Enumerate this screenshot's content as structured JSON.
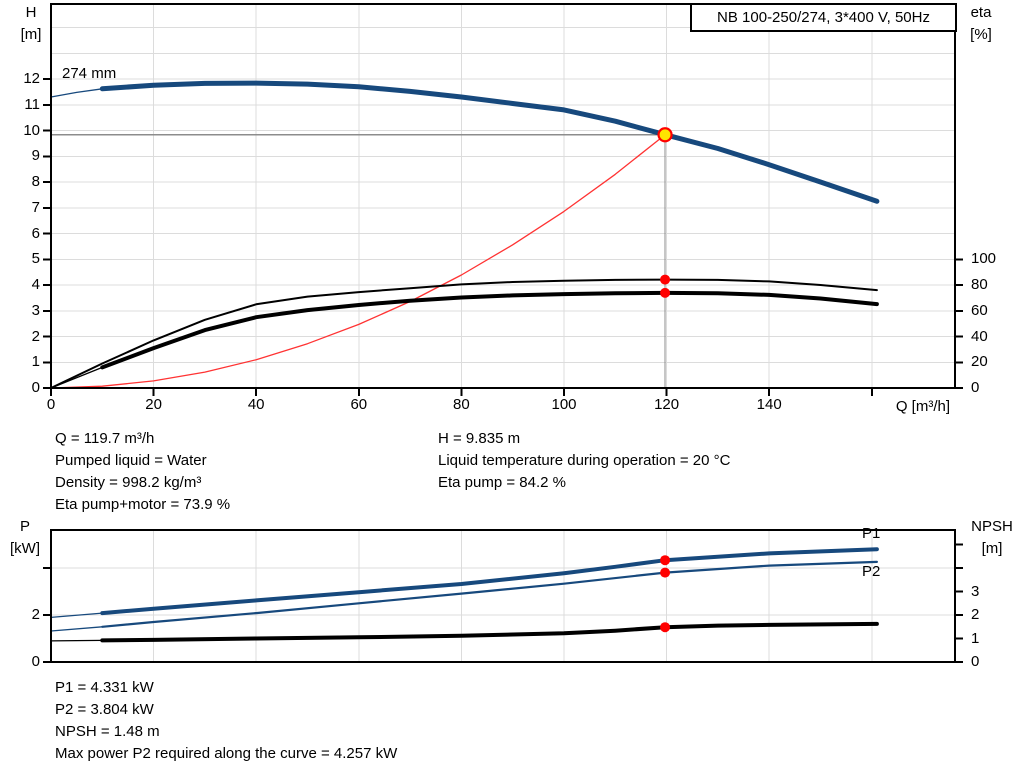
{
  "colors": {
    "blue": "#17497D",
    "black": "#000000",
    "red_curve": "#FF3333",
    "marker_red": "#FF0000",
    "marker_yellow": "#FFE500",
    "grid": "#DCDCDC",
    "crosshair": "#8C8C8C",
    "frame": "#000000"
  },
  "pump": {
    "title": "NB 100-250/274, 3*400 V, 50Hz",
    "impeller": "274 mm"
  },
  "axis_labels": {
    "h": "H",
    "h_unit": "[m]",
    "eta": "eta",
    "eta_unit": "[%]",
    "q": "Q [m³/h]",
    "p": "P",
    "p_unit": "[kW]",
    "npsh": "NPSH",
    "npsh_unit": "[m]"
  },
  "curve_labels": {
    "p1": "P1",
    "p2": "P2"
  },
  "operating_point": {
    "q": 119.7,
    "h": 9.835,
    "eta_pump": 84.2,
    "eta_pump_motor": 73.9,
    "p1": 4.331,
    "p2": 3.804,
    "npsh": 1.48
  },
  "results_top": {
    "left": [
      "Q = 119.7 m³/h",
      "Pumped liquid = Water",
      "Density = 998.2 kg/m³",
      "Eta pump+motor = 73.9 %"
    ],
    "right": [
      "H = 9.835 m",
      "Liquid temperature during operation = 20 °C",
      "Eta pump = 84.2 %"
    ]
  },
  "results_bottom": [
    "P1 = 4.331 kW",
    "P2 = 3.804 kW",
    "NPSH = 1.48 m",
    "Max power P2 required along the curve = 4.257 kW"
  ],
  "chart_data": [
    {
      "type": "line",
      "name": "qh-efficiency-chart",
      "x_axis": {
        "label": "Q [m³/h]",
        "min": 0,
        "max": 175.5,
        "ticks": [
          0,
          20,
          40,
          60,
          80,
          100,
          120,
          140,
          160
        ],
        "tick_labels": [
          "0",
          "20",
          "40",
          "60",
          "80",
          "100",
          "120",
          "140",
          ""
        ]
      },
      "y_left": {
        "label": "H [m]",
        "min": 0,
        "max": 14.9,
        "ticks": [
          0,
          1,
          2,
          3,
          4,
          5,
          6,
          7,
          8,
          9,
          10,
          11,
          12
        ],
        "tick_labels": [
          "0",
          "1",
          "2",
          "3",
          "4",
          "5",
          "6",
          "7",
          "8",
          "9",
          "10",
          "11",
          "12"
        ]
      },
      "y_right": {
        "label": "eta [%]",
        "min": 0,
        "max": 100,
        "ticks": [
          0,
          20,
          40,
          60,
          80,
          100
        ],
        "tick_labels": [
          "0",
          "20",
          "40",
          "60",
          "80",
          "100"
        ]
      },
      "grid": {
        "v": [
          20,
          40,
          60,
          80,
          100,
          120,
          140,
          160
        ],
        "h": [
          1,
          2,
          3,
          4,
          5,
          6,
          7,
          8,
          9,
          10,
          11,
          12,
          13,
          14
        ]
      },
      "crosshair": {
        "q": 119.7,
        "h": 9.835
      },
      "series": [
        {
          "name": "qh-curve-lead",
          "axis": "left",
          "color": "blue",
          "width": 1.3,
          "points": [
            [
              0,
              11.3
            ],
            [
              5,
              11.48
            ],
            [
              10,
              11.62
            ]
          ]
        },
        {
          "name": "qh-curve",
          "axis": "left",
          "color": "blue",
          "width": 5,
          "points": [
            [
              10,
              11.62
            ],
            [
              20,
              11.76
            ],
            [
              30,
              11.83
            ],
            [
              40,
              11.84
            ],
            [
              50,
              11.8
            ],
            [
              60,
              11.7
            ],
            [
              70,
              11.52
            ],
            [
              80,
              11.3
            ],
            [
              90,
              11.05
            ],
            [
              100,
              10.8
            ],
            [
              110,
              10.36
            ],
            [
              119.7,
              9.835
            ],
            [
              130,
              9.3
            ],
            [
              140,
              8.67
            ],
            [
              150,
              8.0
            ],
            [
              161,
              7.25
            ]
          ]
        },
        {
          "name": "system-curve",
          "axis": "left",
          "color": "red_curve",
          "width": 1.3,
          "points": [
            [
              0,
              0
            ],
            [
              10,
              0.069
            ],
            [
              20,
              0.275
            ],
            [
              30,
              0.618
            ],
            [
              40,
              1.1
            ],
            [
              50,
              1.72
            ],
            [
              60,
              2.47
            ],
            [
              70,
              3.36
            ],
            [
              80,
              4.39
            ],
            [
              90,
              5.56
            ],
            [
              100,
              6.86
            ],
            [
              110,
              8.3
            ],
            [
              119.7,
              9.835
            ]
          ]
        },
        {
          "name": "eta-pump-curve",
          "axis": "right",
          "color": "black",
          "width": 2,
          "points": [
            [
              0,
              0
            ],
            [
              10,
              19
            ],
            [
              20,
              37
            ],
            [
              30,
              53
            ],
            [
              40,
              65
            ],
            [
              50,
              71
            ],
            [
              60,
              74.5
            ],
            [
              70,
              77.5
            ],
            [
              80,
              80.5
            ],
            [
              90,
              82.3
            ],
            [
              100,
              83.3
            ],
            [
              110,
              84
            ],
            [
              119.7,
              84.2
            ],
            [
              130,
              84
            ],
            [
              140,
              82.8
            ],
            [
              150,
              80
            ],
            [
              161,
              76
            ]
          ]
        },
        {
          "name": "eta-pump-motor-lead",
          "axis": "right",
          "color": "black",
          "width": 1.3,
          "points": [
            [
              0,
              0
            ],
            [
              10,
              16
            ]
          ]
        },
        {
          "name": "eta-pump-motor-curve",
          "axis": "right",
          "color": "black",
          "width": 4,
          "points": [
            [
              10,
              16
            ],
            [
              20,
              31
            ],
            [
              30,
              45
            ],
            [
              40,
              55
            ],
            [
              50,
              60.5
            ],
            [
              60,
              64.5
            ],
            [
              70,
              67.8
            ],
            [
              80,
              70.3
            ],
            [
              90,
              71.9
            ],
            [
              100,
              72.9
            ],
            [
              110,
              73.6
            ],
            [
              119.7,
              73.9
            ],
            [
              130,
              73.6
            ],
            [
              140,
              72.3
            ],
            [
              150,
              69.5
            ],
            [
              161,
              65.2
            ]
          ]
        }
      ],
      "markers": [
        {
          "name": "duty-point",
          "axis": "left",
          "q": 119.7,
          "v": 9.835,
          "style": "duty"
        },
        {
          "name": "eta-pump-point",
          "axis": "right",
          "q": 119.7,
          "v": 84.2,
          "style": "dot"
        },
        {
          "name": "eta-pump-motor-point",
          "axis": "right",
          "q": 119.7,
          "v": 73.9,
          "style": "dot"
        }
      ]
    },
    {
      "type": "line",
      "name": "power-npsh-chart",
      "x_axis": {
        "label": "",
        "min": 0,
        "max": 175.5,
        "ticks": [],
        "tick_labels": []
      },
      "y_left": {
        "label": "P [kW]",
        "min": 0,
        "max": 5.6,
        "ticks": [
          0,
          2,
          4
        ],
        "tick_labels": [
          "0",
          "2",
          ""
        ]
      },
      "y_right": {
        "label": "NPSH [m]",
        "min": 0,
        "max": 5.6,
        "ticks": [
          0,
          1,
          2,
          3,
          4,
          5
        ],
        "tick_labels": [
          "0",
          "1",
          "2",
          "3",
          "",
          ""
        ]
      },
      "grid": {
        "v": [
          20,
          40,
          60,
          80,
          100,
          120,
          140,
          160
        ],
        "h": [
          2,
          4
        ]
      },
      "series": [
        {
          "name": "p1-curve-lead",
          "axis": "left",
          "color": "blue",
          "width": 1.3,
          "points": [
            [
              0,
              1.9
            ],
            [
              10,
              2.08
            ]
          ]
        },
        {
          "name": "p1-curve",
          "axis": "left",
          "color": "blue",
          "width": 4,
          "points": [
            [
              10,
              2.08
            ],
            [
              20,
              2.27
            ],
            [
              40,
              2.62
            ],
            [
              60,
              2.97
            ],
            [
              80,
              3.32
            ],
            [
              100,
              3.78
            ],
            [
              110,
              4.05
            ],
            [
              119.7,
              4.331
            ],
            [
              140,
              4.62
            ],
            [
              161,
              4.8
            ]
          ]
        },
        {
          "name": "p2-curve-lead",
          "axis": "left",
          "color": "blue",
          "width": 1.3,
          "points": [
            [
              0,
              1.32
            ],
            [
              10,
              1.5
            ]
          ]
        },
        {
          "name": "p2-curve",
          "axis": "left",
          "color": "blue",
          "width": 2.2,
          "points": [
            [
              10,
              1.5
            ],
            [
              20,
              1.7
            ],
            [
              40,
              2.08
            ],
            [
              60,
              2.5
            ],
            [
              80,
              2.91
            ],
            [
              100,
              3.33
            ],
            [
              119.7,
              3.804
            ],
            [
              140,
              4.1
            ],
            [
              161,
              4.26
            ]
          ]
        },
        {
          "name": "npsh-curve-lead",
          "axis": "right",
          "color": "black",
          "width": 1.3,
          "points": [
            [
              0,
              0.9
            ],
            [
              10,
              0.92
            ]
          ]
        },
        {
          "name": "npsh-curve",
          "axis": "right",
          "color": "black",
          "width": 4,
          "points": [
            [
              10,
              0.92
            ],
            [
              20,
              0.94
            ],
            [
              40,
              1.0
            ],
            [
              60,
              1.05
            ],
            [
              80,
              1.12
            ],
            [
              100,
              1.22
            ],
            [
              110,
              1.33
            ],
            [
              119.7,
              1.48
            ],
            [
              130,
              1.55
            ],
            [
              140,
              1.58
            ],
            [
              161,
              1.62
            ]
          ]
        }
      ],
      "markers": [
        {
          "name": "p1-point",
          "axis": "left",
          "q": 119.7,
          "v": 4.331,
          "style": "dot"
        },
        {
          "name": "p2-point",
          "axis": "left",
          "q": 119.7,
          "v": 3.804,
          "style": "dot"
        },
        {
          "name": "npsh-point",
          "axis": "right",
          "q": 119.7,
          "v": 1.48,
          "style": "dot"
        }
      ]
    }
  ]
}
